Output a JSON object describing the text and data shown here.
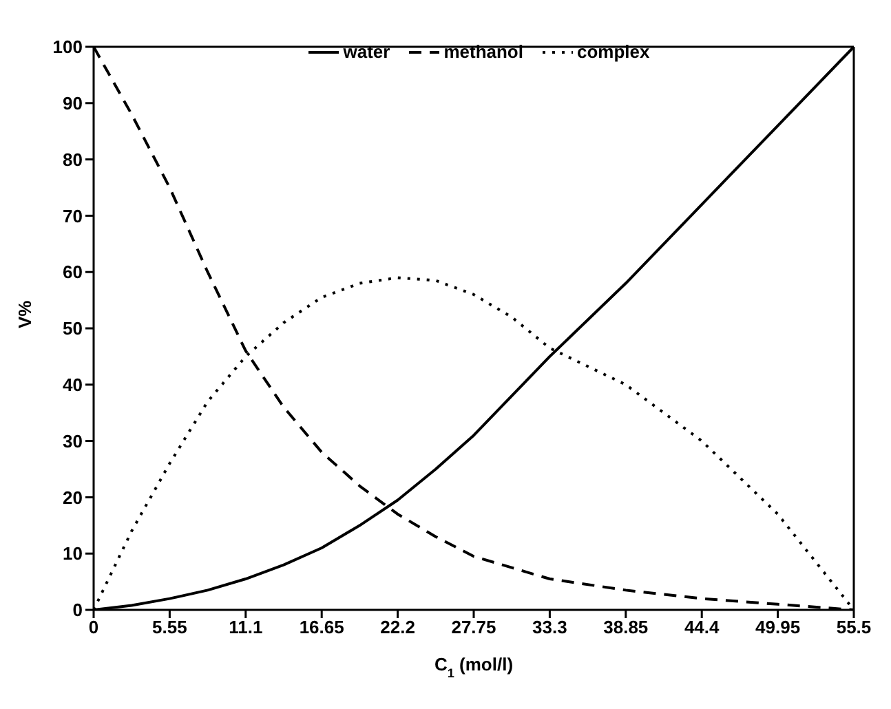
{
  "chart_data": {
    "type": "line",
    "xlabel": "C$_{1}$ (mol/l)",
    "ylabel": "V%",
    "x": [
      0,
      2.775,
      5.55,
      8.325,
      11.1,
      13.875,
      16.65,
      19.425,
      22.2,
      24.975,
      27.75,
      30.525,
      33.3,
      38.85,
      44.4,
      49.95,
      55.5
    ],
    "series": [
      {
        "name": "water",
        "color": "#000000",
        "line_style": "solid",
        "values": [
          0,
          0.8,
          2,
          3.5,
          5.5,
          8,
          11,
          15,
          19.5,
          25,
          31,
          38,
          45,
          58,
          72,
          86,
          100
        ]
      },
      {
        "name": "methanol",
        "color": "#000000",
        "line_style": "dashed",
        "values": [
          100,
          88,
          75,
          60,
          46,
          36,
          28,
          22,
          17,
          13,
          9.5,
          7.5,
          5.5,
          3.5,
          2,
          1,
          0
        ]
      },
      {
        "name": "complex",
        "color": "#000000",
        "line_style": "dotted",
        "values": [
          0,
          14,
          26,
          37,
          45,
          51,
          55.5,
          58,
          59,
          58.5,
          56,
          52,
          46.5,
          40,
          30,
          17,
          0
        ]
      }
    ],
    "xlim": [
      0,
      55.5
    ],
    "xticks": [
      0,
      5.55,
      11.1,
      16.65,
      22.2,
      27.75,
      33.3,
      38.85,
      44.4,
      49.95,
      55.5
    ],
    "ylim": [
      0,
      100
    ],
    "yticks": [
      0,
      10,
      20,
      30,
      40,
      50,
      60,
      70,
      80,
      90,
      100
    ],
    "grid": false,
    "legend": "top",
    "marker": "none"
  }
}
